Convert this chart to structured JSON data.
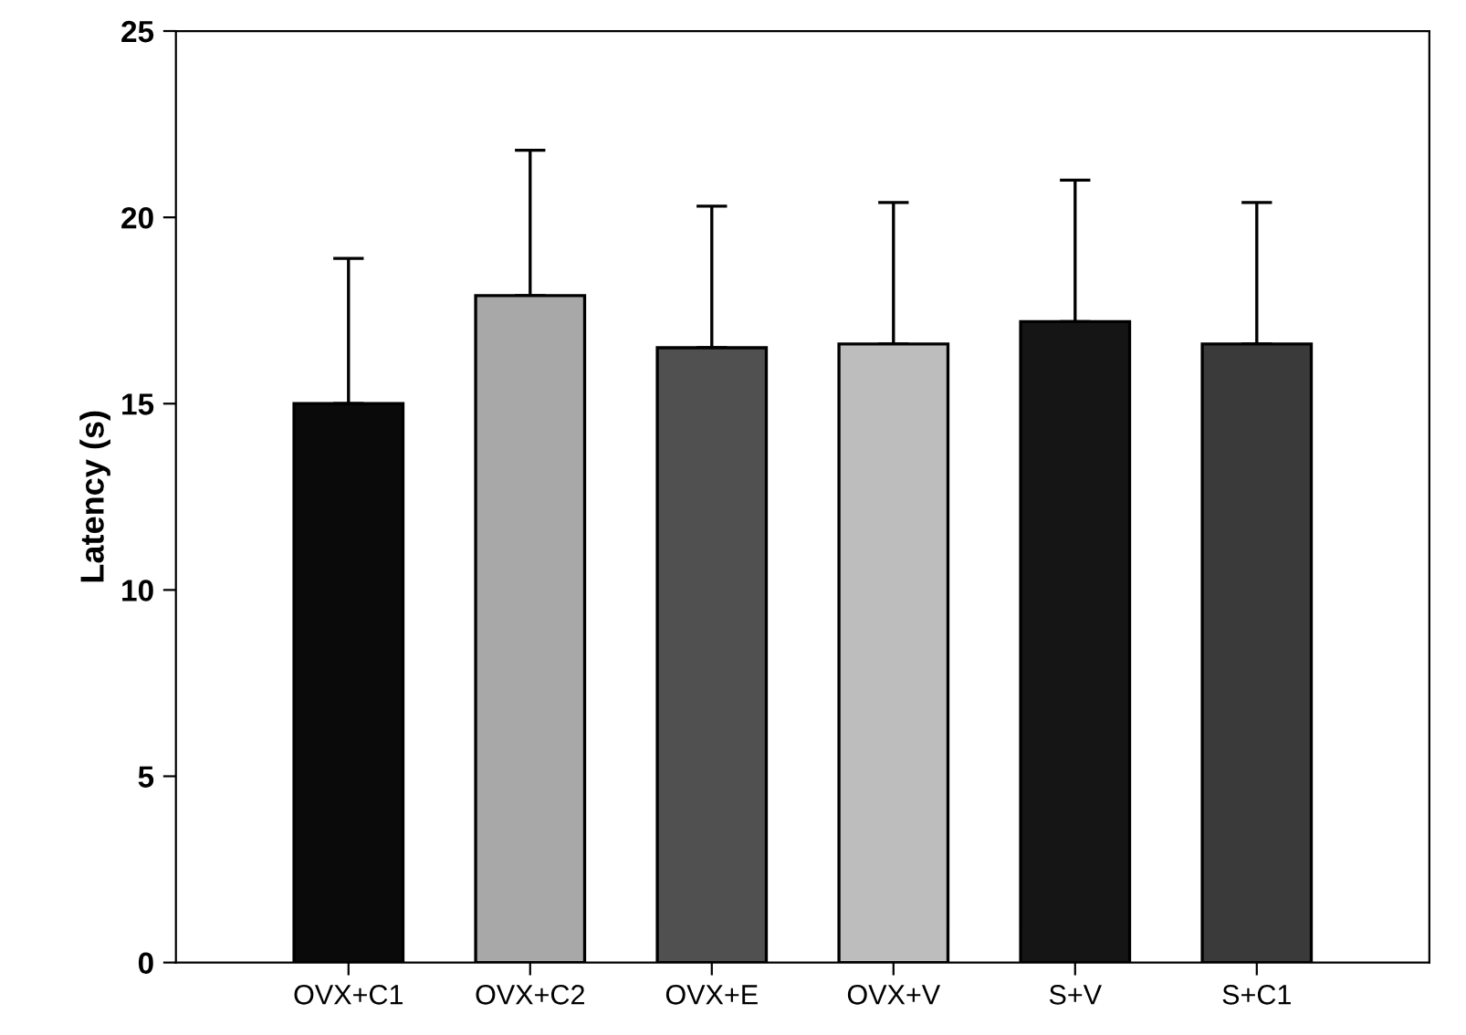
{
  "chart_data": {
    "type": "bar",
    "ylabel": "Latency (s)",
    "categories": [
      "OVX+C1",
      "OVX+C2",
      "OVX+E",
      "OVX+V",
      "S+V",
      "S+C1"
    ],
    "values": [
      15.0,
      17.9,
      16.5,
      16.6,
      17.2,
      16.6
    ],
    "errors": [
      [
        15.0,
        18.9
      ],
      [
        17.9,
        21.8
      ],
      [
        16.5,
        20.3
      ],
      [
        16.6,
        20.4
      ],
      [
        17.2,
        21.0
      ],
      [
        16.6,
        20.4
      ]
    ],
    "colors": [
      "#0a0a0a",
      "#a8a8a8",
      "#505050",
      "#bdbdbd",
      "#151515",
      "#3a3a3a"
    ],
    "ylim": [
      0,
      25
    ],
    "yticks": [
      0,
      5,
      10,
      15,
      20,
      25
    ],
    "grid": false
  }
}
